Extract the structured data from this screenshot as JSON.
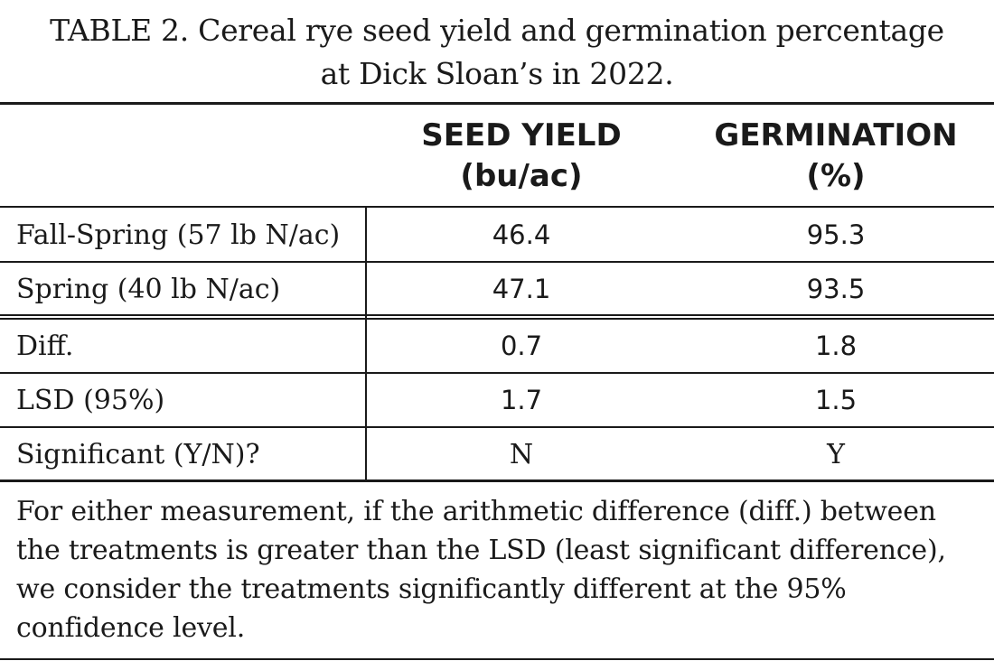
{
  "caption": {
    "line1": "TABLE 2. Cereal rye seed yield and germination percentage",
    "line2": "at Dick Sloan’s in 2022."
  },
  "columns": [
    {
      "line1": "SEED YIELD",
      "line2": "(bu/ac)"
    },
    {
      "line1": "GERMINATION",
      "line2": "(%)"
    }
  ],
  "rows": [
    {
      "label": "Fall-Spring (57 lb N/ac)",
      "seed_yield": "46.4",
      "germination": "95.3"
    },
    {
      "label": "Spring (40 lb N/ac)",
      "seed_yield": "47.1",
      "germination": "93.5"
    },
    {
      "label": "Diff.",
      "seed_yield": "0.7",
      "germination": "1.8"
    },
    {
      "label": "LSD (95%)",
      "seed_yield": "1.7",
      "germination": "1.5"
    },
    {
      "label": "Significant (Y/N)?",
      "seed_yield": "N",
      "germination": "Y"
    }
  ],
  "footnote": "For either measurement, if the arithmetic difference (diff.) between the treatments is greater than the LSD (least significant difference), we consider the treatments significantly different at the 95% confidence level."
}
